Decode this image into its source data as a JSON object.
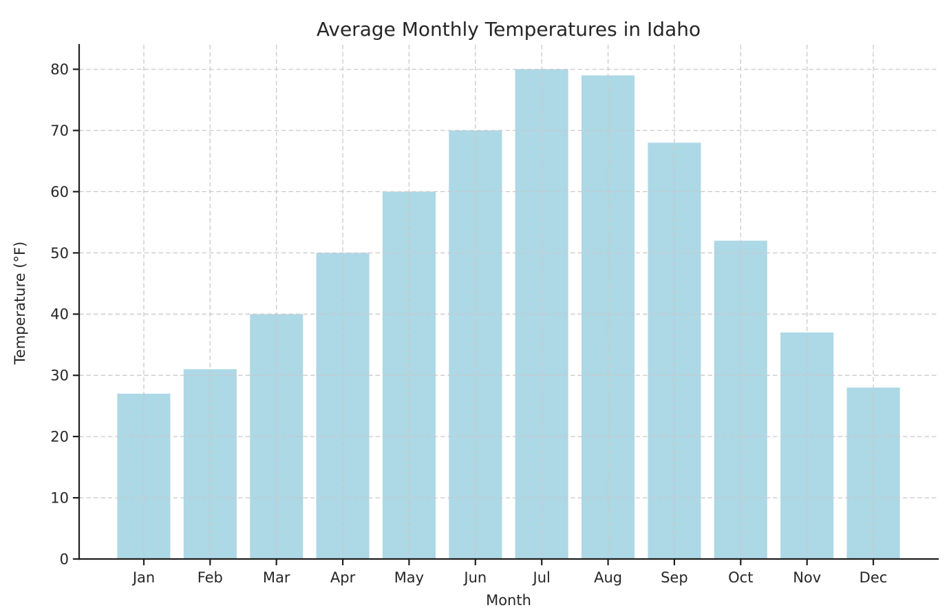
{
  "chart_data": {
    "type": "bar",
    "title": "Average Monthly Temperatures in Idaho",
    "xlabel": "Month",
    "ylabel": "Temperature (°F)",
    "categories": [
      "Jan",
      "Feb",
      "Mar",
      "Apr",
      "May",
      "Jun",
      "Jul",
      "Aug",
      "Sep",
      "Oct",
      "Nov",
      "Dec"
    ],
    "values": [
      27,
      31,
      40,
      50,
      60,
      70,
      80,
      79,
      68,
      52,
      37,
      28
    ],
    "ylim": [
      0,
      84
    ],
    "yticks": [
      0,
      10,
      20,
      30,
      40,
      50,
      60,
      70,
      80
    ],
    "grid": "dashed gridlines on both axes, drawn above bars",
    "legend_position": "none",
    "bar_width_fraction": 0.8
  },
  "colors": {
    "bar": "#ADD8E6",
    "grid": "#c9c9c9",
    "spine": "#1f1f1f",
    "text": "#262626",
    "background": "#ffffff"
  }
}
